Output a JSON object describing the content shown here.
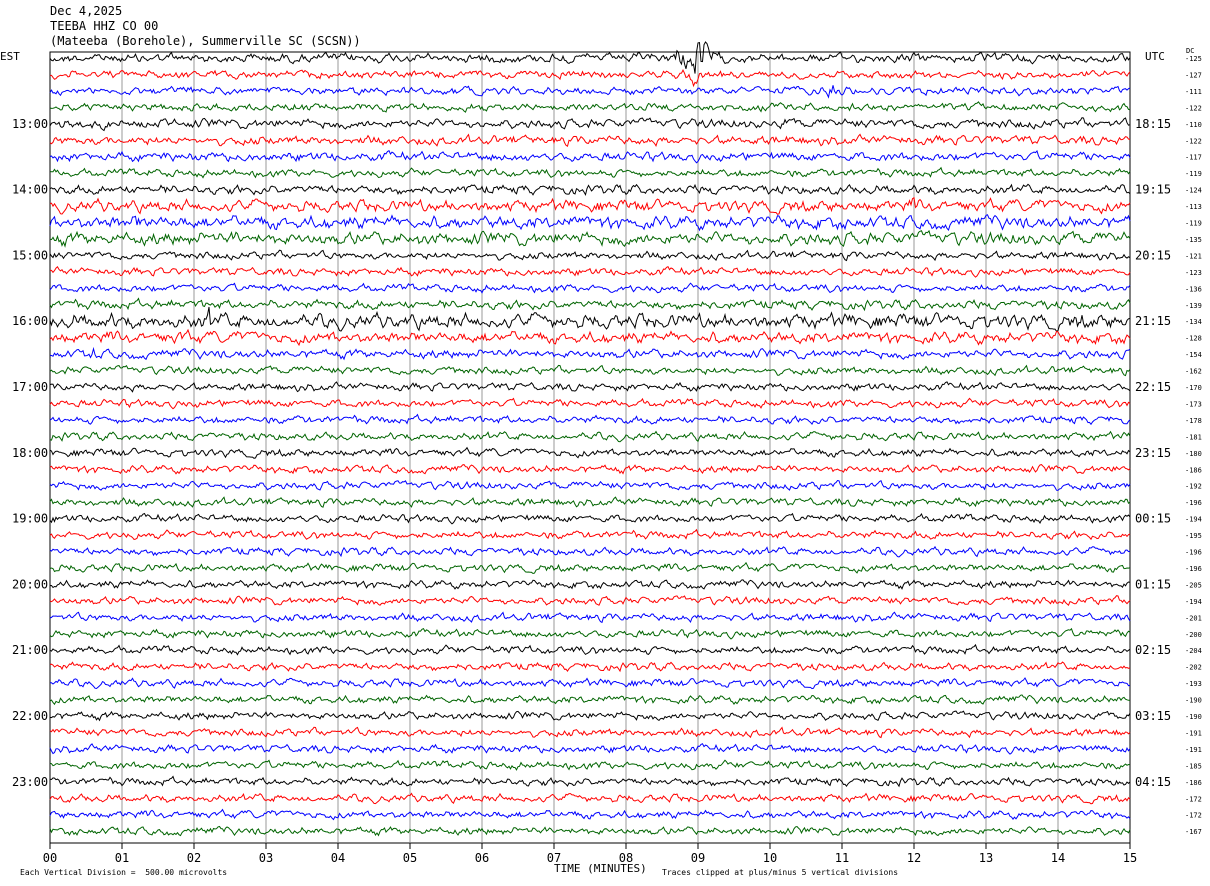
{
  "header": {
    "date": "Dec 4,2025",
    "station": "TEEBA HHZ CO 00",
    "location": "(Mateeba (Borehole), Summerville SC (SCSN))"
  },
  "chart_data": {
    "type": "line",
    "title": "",
    "xlabel": "TIME (MINUTES)",
    "x_ticks": [
      "00",
      "01",
      "02",
      "03",
      "04",
      "05",
      "06",
      "07",
      "08",
      "09",
      "10",
      "11",
      "12",
      "13",
      "14",
      "15"
    ],
    "xlim": [
      0,
      15
    ],
    "left_axis_label": "EST",
    "right_axis_label": "UTC",
    "dc_label": "DC",
    "left_hour_labels": [
      "13:00",
      "14:00",
      "15:00",
      "16:00",
      "17:00",
      "18:00",
      "19:00",
      "20:00",
      "21:00",
      "22:00",
      "23:00"
    ],
    "right_hour_labels": [
      "18:15",
      "19:15",
      "20:15",
      "21:15",
      "22:15",
      "23:15",
      "00:15",
      "01:15",
      "02:15",
      "03:15",
      "04:15"
    ],
    "trace_colors": [
      "#000000",
      "#ff0000",
      "#0000ff",
      "#006400"
    ],
    "dc_offsets": [
      -125,
      -127,
      -111,
      -122,
      -110,
      -122,
      -117,
      -119,
      -124,
      -113,
      -119,
      -135,
      -121,
      -123,
      -136,
      -139,
      -134,
      -128,
      -154,
      -162,
      -170,
      -173,
      -178,
      -181,
      -180,
      -186,
      -192,
      -196,
      -194,
      -195,
      -196,
      -196,
      -205,
      -194,
      -201,
      -200,
      -204,
      -202,
      -193,
      -190,
      -190,
      -191,
      -191,
      -185,
      -186,
      -172,
      -172,
      -167
    ],
    "trace_amplitude_px": [
      3.5,
      3,
      3,
      3,
      3.5,
      3.5,
      3.5,
      3,
      3.5,
      4.5,
      5,
      5,
      3,
      3,
      3,
      3.5,
      5.5,
      4.5,
      3.5,
      3,
      3,
      3,
      3,
      3,
      3,
      3,
      3,
      3,
      3,
      3,
      3,
      3,
      3,
      3,
      3,
      3,
      3,
      3,
      3,
      3,
      3,
      3,
      3,
      3,
      3,
      3,
      3,
      3
    ],
    "events": [
      {
        "trace": 0,
        "minute": 8.98,
        "amplitude_px": 26
      },
      {
        "trace": 0,
        "minute": 8.7,
        "amplitude_px": 9
      },
      {
        "trace": 1,
        "minute": 8.95,
        "amplitude_px": 9
      },
      {
        "trace": 2,
        "minute": 10.85,
        "amplitude_px": 7
      },
      {
        "trace": 4,
        "minute": 10.2,
        "amplitude_px": 6
      },
      {
        "trace": 9,
        "minute": 12.0,
        "amplitude_px": 7
      },
      {
        "trace": 10,
        "minute": 1.2,
        "amplitude_px": 8
      },
      {
        "trace": 11,
        "minute": 2.6,
        "amplitude_px": 7
      },
      {
        "trace": 16,
        "minute": 2.2,
        "amplitude_px": 11
      },
      {
        "trace": 16,
        "minute": 0.8,
        "amplitude_px": 9
      },
      {
        "trace": 16,
        "minute": 3.3,
        "amplitude_px": 7
      },
      {
        "trace": 16,
        "minute": 14.3,
        "amplitude_px": 8
      },
      {
        "trace": 17,
        "minute": 1.8,
        "amplitude_px": 8
      },
      {
        "trace": 18,
        "minute": 0.6,
        "amplitude_px": 6
      }
    ]
  },
  "footer": {
    "scale_note": "Each Vertical Division =  500.00 microvolts",
    "clip_note": "Traces clipped at plus/minus 5 vertical divisions"
  }
}
